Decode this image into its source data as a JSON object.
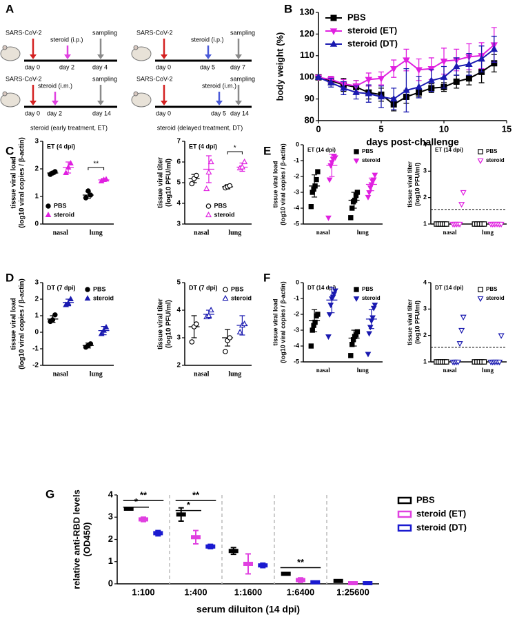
{
  "panel_labels": [
    "A",
    "B",
    "C",
    "D",
    "E",
    "F",
    "G"
  ],
  "diagram": {
    "timelines": [
      {
        "events": [
          "SARS-CoV-2",
          "steroid (i.p.)",
          "sampling"
        ],
        "days": [
          "day 0",
          "day 2",
          "day 4"
        ]
      },
      {
        "events": [
          "SARS-CoV-2",
          "steroid (i.p.)",
          "sampling"
        ],
        "days": [
          "day 0",
          "day 5",
          "day 7"
        ]
      },
      {
        "events": [
          "SARS-CoV-2",
          "steroid (i.m.)",
          "sampling"
        ],
        "days": [
          "day 0",
          "day 2",
          "day 14"
        ]
      },
      {
        "events": [
          "SARS-CoV-2",
          "steroid (i.m.)",
          "sampling"
        ],
        "days": [
          "day 0",
          "day 5",
          "day 14"
        ]
      }
    ],
    "captions": [
      "steroid (early treatment, ET)",
      "steroid (delayed treatment, DT)"
    ]
  },
  "chart_data": [
    {
      "type": "line",
      "xlabel": "days post-challenge",
      "ylabel": [
        "body weight (%)"
      ],
      "legend": "upper left",
      "x": [
        0,
        1,
        2,
        3,
        4,
        5,
        6,
        7,
        8,
        9,
        10,
        11,
        12,
        13,
        14
      ],
      "xlim": [
        0,
        15
      ],
      "xticks": [
        0,
        5,
        10,
        15
      ],
      "ylim": [
        80,
        130
      ],
      "yticks": [
        80,
        90,
        100,
        110,
        120,
        130
      ],
      "series": [
        {
          "name": "PBS",
          "color": "#000000",
          "marker": "square",
          "values": [
            100,
            98.5,
            96.5,
            95.5,
            93,
            92,
            87.5,
            91,
            93,
            95,
            95.5,
            98,
            99.5,
            102.5,
            106.5
          ],
          "errors": [
            0.5,
            2,
            3,
            3,
            3,
            3,
            3,
            3,
            2,
            2,
            2,
            3,
            3,
            5,
            4
          ]
        },
        {
          "name": "steroid (ET)",
          "color": "#e020e0",
          "marker": "down",
          "values": [
            100,
            99,
            97,
            96,
            99,
            99.5,
            104,
            108,
            103.5,
            104,
            107.5,
            108,
            109.5,
            110,
            115
          ],
          "errors": [
            0.5,
            1.5,
            2,
            2.5,
            3,
            3,
            4,
            5,
            5,
            5,
            6,
            5,
            6,
            6,
            8
          ]
        },
        {
          "name": "steroid (DT)",
          "color": "#1a1ab0",
          "marker": "up",
          "values": [
            100,
            97.5,
            95,
            93,
            92.5,
            91,
            90,
            94,
            95.5,
            98.5,
            100,
            105,
            106,
            108.5,
            113
          ],
          "errors": [
            0.5,
            2,
            3,
            3,
            4,
            5,
            5,
            10,
            5,
            5,
            5,
            4,
            5,
            6,
            6
          ]
        }
      ]
    },
    {
      "type": "dot",
      "title": "ET (4 dpi)",
      "ylabel": [
        "tissue viral load",
        "(log10 viral copies / β-actin)"
      ],
      "legend": "lower left",
      "categories": [
        "nasal",
        "lung"
      ],
      "ylim": [
        0,
        3
      ],
      "yticks": [
        0,
        1,
        2,
        3
      ],
      "series": [
        {
          "name": "PBS",
          "color": "#000000",
          "marker": "circle",
          "values": [
            [
              1.8,
              1.85,
              1.9
            ],
            [
              0.95,
              1.2,
              1.05
            ]
          ],
          "mean": [
            1.85,
            1.05
          ],
          "error": [
            0.05,
            0.12
          ]
        },
        {
          "name": "steroid",
          "color": "#e020e0",
          "marker": "up",
          "values": [
            [
              1.85,
              2.05,
              2.2
            ],
            [
              1.55,
              1.6,
              1.62
            ]
          ],
          "mean": [
            2.05,
            1.6
          ],
          "error": [
            0.2,
            0.05
          ]
        }
      ],
      "annotations": [
        {
          "text": "**",
          "category": 1,
          "y": 2.05
        }
      ]
    },
    {
      "type": "dot",
      "title": "ET (4 dpi)",
      "ylabel": [
        "tissue viral titer",
        "(log10 PFU/ml)"
      ],
      "legend": "lower center",
      "open": true,
      "categories": [
        "nasal",
        "lung"
      ],
      "ylim": [
        3,
        7
      ],
      "yticks": [
        3,
        4,
        5,
        6,
        7
      ],
      "series": [
        {
          "name": "PBS",
          "color": "#000000",
          "marker": "circle",
          "values": [
            [
              4.95,
              5.2,
              5.35
            ],
            [
              4.75,
              4.8,
              4.85
            ]
          ],
          "mean": [
            5.2,
            4.8
          ],
          "error": [
            0.2,
            0.1
          ]
        },
        {
          "name": "steroid",
          "color": "#e020e0",
          "marker": "up",
          "values": [
            [
              4.7,
              5.5,
              6.0
            ],
            [
              5.7,
              5.75,
              6.0
            ]
          ],
          "mean": [
            5.65,
            5.75
          ],
          "error": [
            0.65,
            0.2
          ]
        }
      ],
      "annotations": [
        {
          "text": "*",
          "category": 1,
          "y": 6.5
        }
      ]
    },
    {
      "type": "dot",
      "title": "DT (7 dpi)",
      "ylabel": [
        "tissue viral load",
        "(log10 viral copies / β-actin)"
      ],
      "legend": "upper right",
      "categories": [
        "nasal",
        "lung"
      ],
      "ylim": [
        -2,
        3
      ],
      "yticks": [
        -2,
        -1,
        0,
        1,
        2,
        3
      ],
      "series": [
        {
          "name": "PBS",
          "color": "#000000",
          "marker": "circle",
          "values": [
            [
              0.65,
              0.75,
              1.05
            ],
            [
              -0.9,
              -0.8,
              -0.7
            ]
          ],
          "mean": [
            0.8,
            -0.8
          ],
          "error": [
            0.2,
            0.15
          ]
        },
        {
          "name": "steroid",
          "color": "#1a1ab0",
          "marker": "up",
          "values": [
            [
              1.65,
              1.75,
              2.0
            ],
            [
              -0.1,
              0.1,
              0.3
            ]
          ],
          "mean": [
            1.8,
            0.1
          ],
          "error": [
            0.2,
            0.25
          ]
        }
      ]
    },
    {
      "type": "dot",
      "title": "DT (7 dpi)",
      "ylabel": [
        "tissue viral titer",
        "(log10 PFU/ml)"
      ],
      "legend": "upper right",
      "open": true,
      "categories": [
        "nasal",
        "lung"
      ],
      "ylim": [
        2,
        5
      ],
      "yticks": [
        2,
        3,
        4,
        5
      ],
      "series": [
        {
          "name": "PBS",
          "color": "#000000",
          "marker": "circle",
          "values": [
            [
              2.85,
              3.4,
              3.5
            ],
            [
              2.5,
              2.9,
              3.0
            ]
          ],
          "mean": [
            3.4,
            3.0
          ],
          "error": [
            0.4,
            0.3
          ]
        },
        {
          "name": "steroid",
          "color": "#1a1ab0",
          "marker": "up",
          "values": [
            [
              3.75,
              3.8,
              4.0
            ],
            [
              3.2,
              3.45,
              3.5
            ]
          ],
          "mean": [
            3.85,
            3.45
          ],
          "error": [
            0.15,
            0.35
          ]
        }
      ]
    },
    {
      "type": "dot",
      "title": "ET (14 dpi)",
      "ylabel": [
        "tissue viral load",
        "(log10 viral copies / β-actin)"
      ],
      "legend": "upper right",
      "categories": [
        "nasal",
        "lung"
      ],
      "ylim": [
        -5,
        0
      ],
      "yticks": [
        -5,
        -4,
        -3,
        -2,
        -1,
        0
      ],
      "series": [
        {
          "name": "PBS",
          "color": "#000000",
          "marker": "square",
          "values": [
            [
              -3.9,
              -3.0,
              -2.8,
              -2.6,
              -2.2,
              -1.7
            ],
            [
              -4.6,
              -4.0,
              -3.6,
              -3.5,
              -3.2,
              -3.0
            ]
          ],
          "mean": [
            -2.6,
            -3.5
          ],
          "error": [
            0.7,
            0.5
          ]
        },
        {
          "name": "steroid",
          "color": "#e020e0",
          "marker": "down",
          "values": [
            [
              -4.6,
              -2.2,
              -1.3,
              -1.1,
              -0.9,
              -0.7,
              -0.8
            ],
            [
              -3.3,
              -3.0,
              -2.7,
              -2.5,
              -2.3,
              -2.2,
              -1.9
            ]
          ],
          "mean": [
            -1.3,
            -2.5
          ],
          "error": [
            0.7,
            0.4
          ]
        }
      ]
    },
    {
      "type": "dot",
      "title": "ET (14 dpi)",
      "ylabel": [
        "tissue viral titer",
        "(log10 PFU/ml)"
      ],
      "legend": "upper right",
      "open": true,
      "hline": 1.55,
      "categories": [
        "nasal",
        "lung"
      ],
      "ylim": [
        1,
        4
      ],
      "yticks": [
        1,
        2,
        3,
        4
      ],
      "series": [
        {
          "name": "PBS",
          "color": "#000000",
          "marker": "square",
          "values": [
            [
              1,
              1,
              1,
              1,
              1,
              1
            ],
            [
              1,
              1,
              1,
              1,
              1
            ]
          ]
        },
        {
          "name": "steroid",
          "color": "#e020e0",
          "marker": "down",
          "values": [
            [
              1,
              1,
              1,
              1,
              1,
              1.75,
              2.2
            ],
            [
              1,
              1,
              1,
              1,
              1,
              1,
              1
            ]
          ]
        }
      ]
    },
    {
      "type": "dot",
      "title": "DT (14 dpi)",
      "ylabel": [
        "tissue viral load",
        "(log10 viral copies / β-actin)"
      ],
      "legend": "upper right",
      "categories": [
        "nasal",
        "lung"
      ],
      "ylim": [
        -5,
        0
      ],
      "yticks": [
        -5,
        -4,
        -3,
        -2,
        -1,
        0
      ],
      "series": [
        {
          "name": "PBS",
          "color": "#000000",
          "marker": "square",
          "values": [
            [
              -4.0,
              -3.0,
              -2.7,
              -2.5,
              -2.1,
              -2.0
            ],
            [
              -4.6,
              -3.9,
              -3.6,
              -3.4,
              -3.3,
              -3.1
            ]
          ],
          "mean": [
            -2.4,
            -3.5
          ],
          "error": [
            0.7,
            0.5
          ]
        },
        {
          "name": "steroid",
          "color": "#1a1ab0",
          "marker": "down",
          "values": [
            [
              -3.4,
              -2.0,
              -1.4,
              -1.0,
              -0.9,
              -0.7,
              -0.5
            ],
            [
              -4.5,
              -3.2,
              -2.8,
              -2.4,
              -2.2,
              -1.6,
              -1.4
            ]
          ],
          "mean": [
            -1.1,
            -2.3
          ],
          "error": [
            0.8,
            0.6
          ]
        }
      ]
    },
    {
      "type": "dot",
      "title": "DT (14 dpi)",
      "ylabel": [
        "tissue viral titer",
        "(log10 PFU/ml)"
      ],
      "legend": "upper right",
      "open": true,
      "hline": 1.55,
      "categories": [
        "nasal",
        "lung"
      ],
      "ylim": [
        1,
        4
      ],
      "yticks": [
        1,
        2,
        3,
        4
      ],
      "series": [
        {
          "name": "PBS",
          "color": "#000000",
          "marker": "square",
          "values": [
            [
              1,
              1,
              1,
              1,
              1,
              1
            ],
            [
              1,
              1,
              1,
              1,
              1
            ]
          ]
        },
        {
          "name": "steroid",
          "color": "#1a1ab0",
          "marker": "down",
          "values": [
            [
              1,
              1,
              1,
              1,
              1.7,
              2.2,
              2.7
            ],
            [
              1,
              1,
              1,
              1,
              1,
              1,
              2.0
            ]
          ]
        }
      ]
    },
    {
      "type": "errorbar",
      "xlabel": "serum diluiton (14 dpi)",
      "ylabel": [
        "relative anti-RBD levels",
        "(OD450)"
      ],
      "legend": "outside right",
      "categories": [
        "1:100",
        "1:400",
        "1:1600",
        "1:6400",
        "1:25600"
      ],
      "ylim": [
        0,
        4
      ],
      "yticks": [
        0,
        1,
        2,
        3,
        4
      ],
      "series": [
        {
          "name": "PBS",
          "color": "#000000",
          "values": [
            3.38,
            3.12,
            1.48,
            0.45,
            0.13
          ],
          "errors": [
            0.03,
            0.3,
            0.15,
            0.06,
            0.03
          ]
        },
        {
          "name": "steroid (ET)",
          "color": "#e040e0",
          "values": [
            2.9,
            2.1,
            0.9,
            0.17,
            0.03
          ],
          "errors": [
            0.1,
            0.3,
            0.45,
            0.1,
            0.02
          ]
        },
        {
          "name": "steroid (DT)",
          "color": "#1a1ad0",
          "values": [
            2.28,
            1.68,
            0.83,
            0.07,
            0.03
          ],
          "errors": [
            0.12,
            0.1,
            0.1,
            0.02,
            0.02
          ]
        }
      ],
      "annotations": [
        {
          "text": "*",
          "category": 0,
          "series": [
            0,
            1
          ],
          "y": 3.45
        },
        {
          "text": "**",
          "category": 0,
          "series": [
            0,
            2
          ],
          "y": 3.75
        },
        {
          "text": "*",
          "category": 1,
          "series": [
            0,
            1
          ],
          "y": 3.3
        },
        {
          "text": "**",
          "category": 1,
          "series": [
            0,
            2
          ],
          "y": 3.75
        },
        {
          "text": "**",
          "category": 3,
          "series": [
            0,
            2
          ],
          "y": 0.73
        }
      ]
    }
  ]
}
